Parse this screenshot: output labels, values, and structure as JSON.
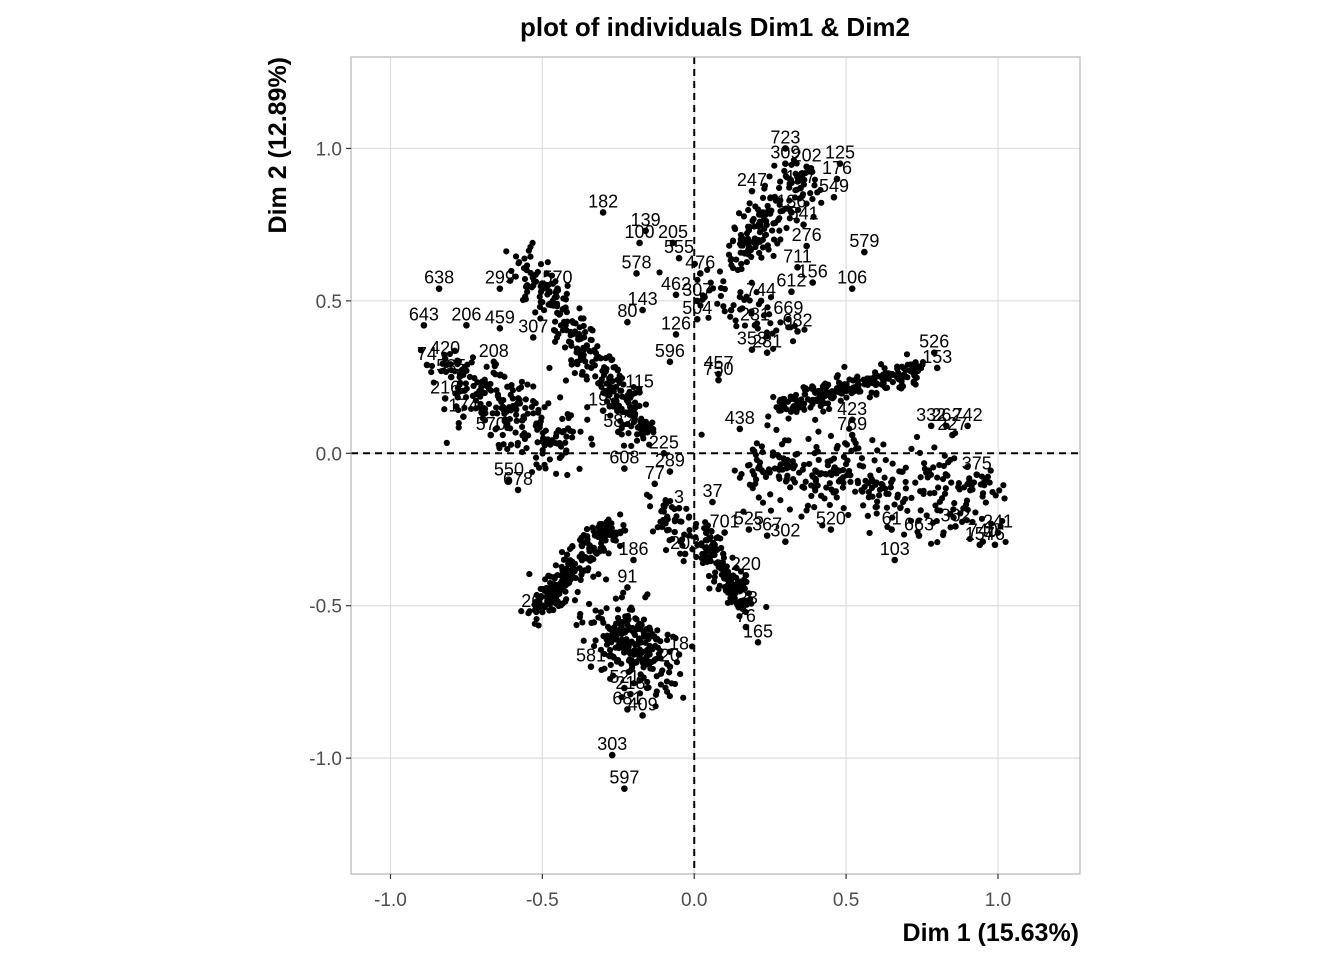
{
  "chart_data": {
    "type": "scatter",
    "title": "plot of individuals Dim1 & Dim2",
    "xlabel": "Dim 1 (15.63%)",
    "ylabel": "Dim 2 (12.89%)",
    "xlim": [
      -1.13,
      1.27
    ],
    "ylim": [
      -1.38,
      1.3
    ],
    "x_ticks": [
      -1.0,
      -0.5,
      0.0,
      0.5,
      1.0
    ],
    "x_tick_labels": [
      "-1.0",
      "-0.5",
      "0.0",
      "0.5",
      "1.0"
    ],
    "y_ticks": [
      -1.0,
      -0.5,
      0.0,
      0.5,
      1.0
    ],
    "y_tick_labels": [
      "-1.0",
      "-0.5",
      "0.0",
      "0.5",
      "1.0"
    ],
    "grid": true,
    "reference_lines": {
      "x": 0,
      "y": 0,
      "style": "dashed"
    },
    "point_color": "#000000",
    "points": [
      {
        "x": 0.3,
        "y": 1.0,
        "label": "723"
      },
      {
        "x": 0.3,
        "y": 0.95,
        "label": "309"
      },
      {
        "x": 0.37,
        "y": 0.94,
        "label": "202"
      },
      {
        "x": 0.48,
        "y": 0.95,
        "label": "125"
      },
      {
        "x": 0.47,
        "y": 0.9,
        "label": "176"
      },
      {
        "x": 0.19,
        "y": 0.86,
        "label": "247"
      },
      {
        "x": 0.35,
        "y": 0.87,
        "label": "147"
      },
      {
        "x": 0.46,
        "y": 0.84,
        "label": "549"
      },
      {
        "x": -0.3,
        "y": 0.79,
        "label": "182"
      },
      {
        "x": 0.32,
        "y": 0.79,
        "label": "136"
      },
      {
        "x": 0.36,
        "y": 0.75,
        "label": "641"
      },
      {
        "x": -0.16,
        "y": 0.73,
        "label": "139"
      },
      {
        "x": -0.18,
        "y": 0.69,
        "label": "100"
      },
      {
        "x": -0.07,
        "y": 0.69,
        "label": "205"
      },
      {
        "x": 0.37,
        "y": 0.68,
        "label": "276"
      },
      {
        "x": 0.56,
        "y": 0.66,
        "label": "579"
      },
      {
        "x": -0.05,
        "y": 0.64,
        "label": "555"
      },
      {
        "x": 0.34,
        "y": 0.61,
        "label": "711"
      },
      {
        "x": -0.19,
        "y": 0.59,
        "label": "578"
      },
      {
        "x": 0.02,
        "y": 0.59,
        "label": "476"
      },
      {
        "x": 0.39,
        "y": 0.56,
        "label": "156"
      },
      {
        "x": 0.52,
        "y": 0.54,
        "label": "106"
      },
      {
        "x": -0.84,
        "y": 0.54,
        "label": "638"
      },
      {
        "x": 0.32,
        "y": 0.53,
        "label": "612"
      },
      {
        "x": -0.64,
        "y": 0.54,
        "label": "299"
      },
      {
        "x": -0.45,
        "y": 0.54,
        "label": "570"
      },
      {
        "x": -0.06,
        "y": 0.52,
        "label": "462"
      },
      {
        "x": 0.22,
        "y": 0.5,
        "label": "744"
      },
      {
        "x": 0.01,
        "y": 0.5,
        "label": "307"
      },
      {
        "x": -0.17,
        "y": 0.47,
        "label": "143"
      },
      {
        "x": 0.31,
        "y": 0.44,
        "label": "669"
      },
      {
        "x": 0.01,
        "y": 0.44,
        "label": "504"
      },
      {
        "x": -0.22,
        "y": 0.43,
        "label": "80"
      },
      {
        "x": -0.89,
        "y": 0.42,
        "label": "643"
      },
      {
        "x": -0.75,
        "y": 0.42,
        "label": "206"
      },
      {
        "x": -0.64,
        "y": 0.41,
        "label": "459"
      },
      {
        "x": 0.2,
        "y": 0.42,
        "label": "231"
      },
      {
        "x": -0.06,
        "y": 0.39,
        "label": "126"
      },
      {
        "x": 0.34,
        "y": 0.4,
        "label": "682"
      },
      {
        "x": -0.53,
        "y": 0.38,
        "label": "307"
      },
      {
        "x": 0.19,
        "y": 0.34,
        "label": "353"
      },
      {
        "x": 0.24,
        "y": 0.33,
        "label": "281"
      },
      {
        "x": -0.08,
        "y": 0.3,
        "label": "596"
      },
      {
        "x": 0.79,
        "y": 0.33,
        "label": "526"
      },
      {
        "x": -0.82,
        "y": 0.31,
        "label": "420"
      },
      {
        "x": -0.66,
        "y": 0.3,
        "label": "208"
      },
      {
        "x": 0.8,
        "y": 0.28,
        "label": "153"
      },
      {
        "x": 0.08,
        "y": 0.26,
        "label": "457"
      },
      {
        "x": 0.08,
        "y": 0.24,
        "label": "750"
      },
      {
        "x": -0.88,
        "y": 0.29,
        "label": "74"
      },
      {
        "x": -0.8,
        "y": 0.25,
        "label": "535"
      },
      {
        "x": -0.82,
        "y": 0.18,
        "label": "216"
      },
      {
        "x": -0.3,
        "y": 0.14,
        "label": "199"
      },
      {
        "x": -0.18,
        "y": 0.2,
        "label": "115"
      },
      {
        "x": 0.52,
        "y": 0.11,
        "label": "423"
      },
      {
        "x": -0.76,
        "y": 0.12,
        "label": "174"
      },
      {
        "x": 0.78,
        "y": 0.09,
        "label": "332"
      },
      {
        "x": 0.83,
        "y": 0.09,
        "label": "262"
      },
      {
        "x": 0.9,
        "y": 0.09,
        "label": "742"
      },
      {
        "x": -0.25,
        "y": 0.07,
        "label": "582"
      },
      {
        "x": -0.67,
        "y": 0.06,
        "label": "570"
      },
      {
        "x": 0.15,
        "y": 0.08,
        "label": "438"
      },
      {
        "x": 0.52,
        "y": 0.06,
        "label": "769"
      },
      {
        "x": 0.85,
        "y": 0.06,
        "label": "227"
      },
      {
        "x": -0.23,
        "y": -0.05,
        "label": "608"
      },
      {
        "x": -0.1,
        "y": 0.0,
        "label": "225"
      },
      {
        "x": -0.08,
        "y": -0.06,
        "label": "289"
      },
      {
        "x": -0.13,
        "y": -0.1,
        "label": "77"
      },
      {
        "x": -0.61,
        "y": -0.09,
        "label": "550"
      },
      {
        "x": -0.58,
        "y": -0.12,
        "label": "678"
      },
      {
        "x": 0.93,
        "y": -0.07,
        "label": "375"
      },
      {
        "x": 0.06,
        "y": -0.16,
        "label": "37"
      },
      {
        "x": -0.05,
        "y": -0.18,
        "label": "3"
      },
      {
        "x": 0.45,
        "y": -0.25,
        "label": "520"
      },
      {
        "x": 0.65,
        "y": -0.25,
        "label": "61"
      },
      {
        "x": 0.74,
        "y": -0.27,
        "label": "663"
      },
      {
        "x": 0.86,
        "y": -0.24,
        "label": "362"
      },
      {
        "x": 1.0,
        "y": -0.26,
        "label": "241"
      },
      {
        "x": 0.95,
        "y": -0.29,
        "label": "740"
      },
      {
        "x": 0.94,
        "y": -0.3,
        "label": "157"
      },
      {
        "x": 0.99,
        "y": -0.3,
        "label": "46"
      },
      {
        "x": 0.24,
        "y": -0.27,
        "label": "367"
      },
      {
        "x": 0.3,
        "y": -0.29,
        "label": "302"
      },
      {
        "x": 0.18,
        "y": -0.25,
        "label": "525"
      },
      {
        "x": 0.1,
        "y": -0.26,
        "label": "701"
      },
      {
        "x": 0.66,
        "y": -0.35,
        "label": "103"
      },
      {
        "x": -0.03,
        "y": -0.33,
        "label": "203"
      },
      {
        "x": -0.2,
        "y": -0.35,
        "label": "186"
      },
      {
        "x": -0.22,
        "y": -0.44,
        "label": "91"
      },
      {
        "x": 0.17,
        "y": -0.4,
        "label": "220"
      },
      {
        "x": 0.13,
        "y": -0.47,
        "label": "29"
      },
      {
        "x": 0.16,
        "y": -0.51,
        "label": "723"
      },
      {
        "x": 0.17,
        "y": -0.57,
        "label": "76"
      },
      {
        "x": 0.21,
        "y": -0.62,
        "label": "165"
      },
      {
        "x": -0.52,
        "y": -0.52,
        "label": "262"
      },
      {
        "x": -0.05,
        "y": -0.66,
        "label": "18"
      },
      {
        "x": -0.08,
        "y": -0.7,
        "label": "20"
      },
      {
        "x": -0.34,
        "y": -0.7,
        "label": "581"
      },
      {
        "x": -0.23,
        "y": -0.77,
        "label": "521"
      },
      {
        "x": -0.21,
        "y": -0.79,
        "label": "218"
      },
      {
        "x": -0.22,
        "y": -0.84,
        "label": "681"
      },
      {
        "x": -0.17,
        "y": -0.86,
        "label": "409"
      },
      {
        "x": -0.27,
        "y": -0.99,
        "label": "303"
      },
      {
        "x": -0.23,
        "y": -1.1,
        "label": "597"
      }
    ]
  }
}
